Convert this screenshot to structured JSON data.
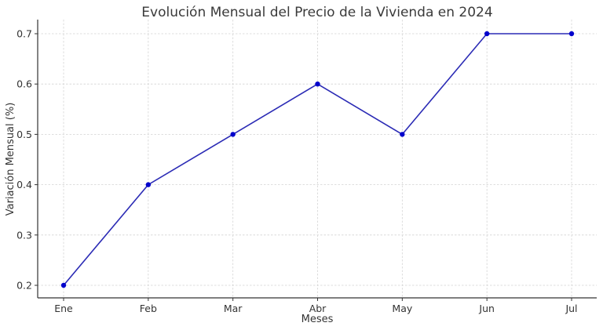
{
  "chart_data": {
    "type": "line",
    "title": "Evolución Mensual del Precio de la Vivienda en 2024",
    "xlabel": "Meses",
    "ylabel": "Variación Mensual (%)",
    "categories": [
      "Ene",
      "Feb",
      "Mar",
      "Abr",
      "May",
      "Jun",
      "Jul"
    ],
    "series": [
      {
        "name": "Variación Mensual (%)",
        "values": [
          0.2,
          0.4,
          0.5,
          0.6,
          0.5,
          0.7,
          0.7
        ],
        "color": "#0000cc",
        "line_color": "#2b2bb5"
      }
    ],
    "yticks": [
      0.2,
      0.3,
      0.4,
      0.5,
      0.6,
      0.7
    ],
    "ylim": [
      0.175,
      0.725
    ],
    "grid": true,
    "legend": null
  }
}
